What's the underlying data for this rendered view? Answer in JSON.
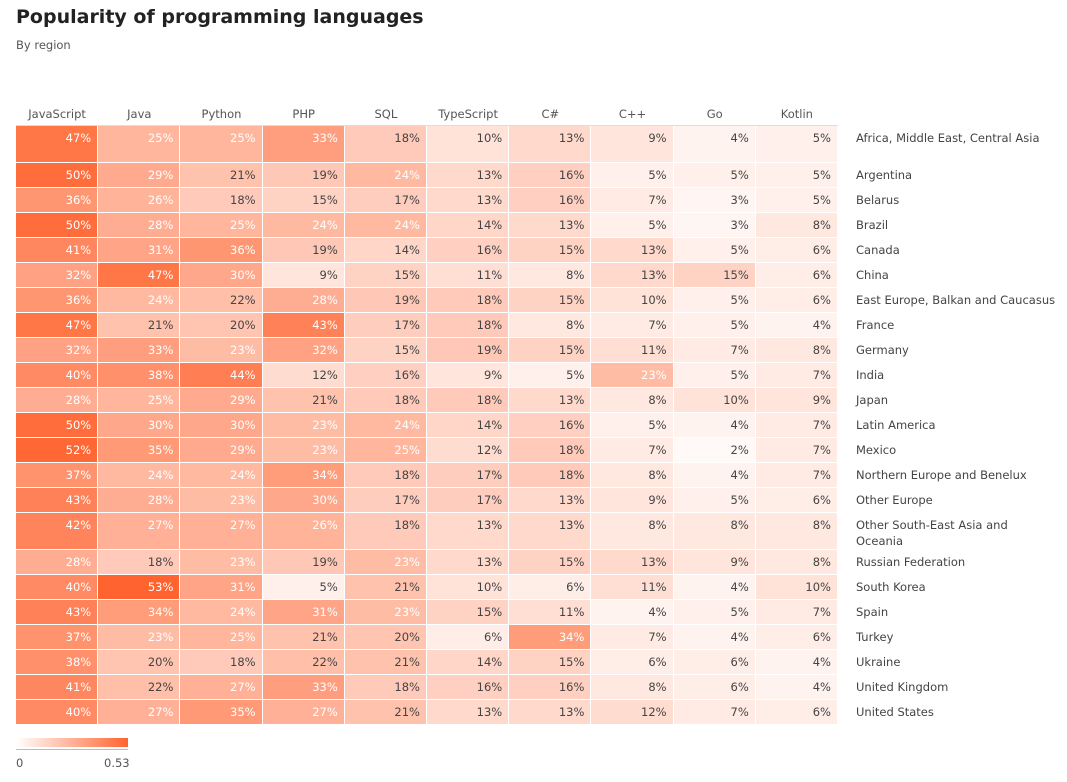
{
  "chart_data": {
    "type": "heatmap",
    "title": "Popularity of programming languages",
    "subtitle": "By region",
    "columns": [
      "JavaScript",
      "Java",
      "Python",
      "PHP",
      "SQL",
      "TypeScript",
      "C#",
      "C++",
      "Go",
      "Kotlin"
    ],
    "rows": [
      {
        "label": "Africa, Middle East, Central Asia",
        "values": [
          47,
          25,
          25,
          33,
          18,
          10,
          13,
          9,
          4,
          5
        ]
      },
      {
        "label": "Argentina",
        "values": [
          50,
          29,
          21,
          19,
          24,
          13,
          16,
          5,
          5,
          5
        ]
      },
      {
        "label": "Belarus",
        "values": [
          36,
          26,
          18,
          15,
          17,
          13,
          16,
          7,
          3,
          5
        ]
      },
      {
        "label": "Brazil",
        "values": [
          50,
          28,
          25,
          24,
          24,
          14,
          13,
          5,
          3,
          8
        ]
      },
      {
        "label": "Canada",
        "values": [
          41,
          31,
          36,
          19,
          14,
          16,
          15,
          13,
          5,
          6
        ]
      },
      {
        "label": "China",
        "values": [
          32,
          47,
          30,
          9,
          15,
          11,
          8,
          13,
          15,
          6
        ]
      },
      {
        "label": "East Europe, Balkan and Caucasus",
        "values": [
          36,
          24,
          22,
          28,
          19,
          18,
          15,
          10,
          5,
          6
        ]
      },
      {
        "label": "France",
        "values": [
          47,
          21,
          20,
          43,
          17,
          18,
          8,
          7,
          5,
          4
        ]
      },
      {
        "label": "Germany",
        "values": [
          32,
          33,
          23,
          32,
          15,
          19,
          15,
          11,
          7,
          8
        ]
      },
      {
        "label": "India",
        "values": [
          40,
          38,
          44,
          12,
          16,
          9,
          5,
          23,
          5,
          7
        ]
      },
      {
        "label": "Japan",
        "values": [
          28,
          25,
          29,
          21,
          18,
          18,
          13,
          8,
          10,
          9
        ]
      },
      {
        "label": "Latin America",
        "values": [
          50,
          30,
          30,
          23,
          24,
          14,
          16,
          5,
          4,
          7
        ]
      },
      {
        "label": "Mexico",
        "values": [
          52,
          35,
          29,
          23,
          25,
          12,
          18,
          7,
          2,
          7
        ]
      },
      {
        "label": "Northern Europe and Benelux",
        "values": [
          37,
          24,
          24,
          34,
          18,
          17,
          18,
          8,
          4,
          7
        ]
      },
      {
        "label": "Other Europe",
        "values": [
          43,
          28,
          23,
          30,
          17,
          17,
          13,
          9,
          5,
          6
        ]
      },
      {
        "label": "Other South-East Asia and Oceania",
        "values": [
          42,
          27,
          27,
          26,
          18,
          13,
          13,
          8,
          8,
          8
        ]
      },
      {
        "label": "Russian Federation",
        "values": [
          28,
          18,
          23,
          19,
          23,
          13,
          15,
          13,
          9,
          8
        ]
      },
      {
        "label": "South Korea",
        "values": [
          40,
          53,
          31,
          5,
          21,
          10,
          6,
          11,
          4,
          10
        ]
      },
      {
        "label": "Spain",
        "values": [
          43,
          34,
          24,
          31,
          23,
          15,
          11,
          4,
          5,
          7
        ]
      },
      {
        "label": "Turkey",
        "values": [
          37,
          23,
          25,
          21,
          20,
          6,
          34,
          7,
          4,
          6
        ]
      },
      {
        "label": "Ukraine",
        "values": [
          38,
          20,
          18,
          22,
          21,
          14,
          15,
          6,
          6,
          4
        ]
      },
      {
        "label": "United Kingdom",
        "values": [
          41,
          22,
          27,
          33,
          18,
          16,
          16,
          8,
          6,
          4
        ]
      },
      {
        "label": "United States",
        "values": [
          40,
          27,
          35,
          27,
          21,
          13,
          13,
          12,
          7,
          6
        ]
      }
    ],
    "value_suffix": "%",
    "color_scale": {
      "min": 0,
      "max": 0.53,
      "min_label": "0",
      "max_label": "0.53",
      "low_color": "#ffffff",
      "high_color": "#ff6430"
    }
  }
}
